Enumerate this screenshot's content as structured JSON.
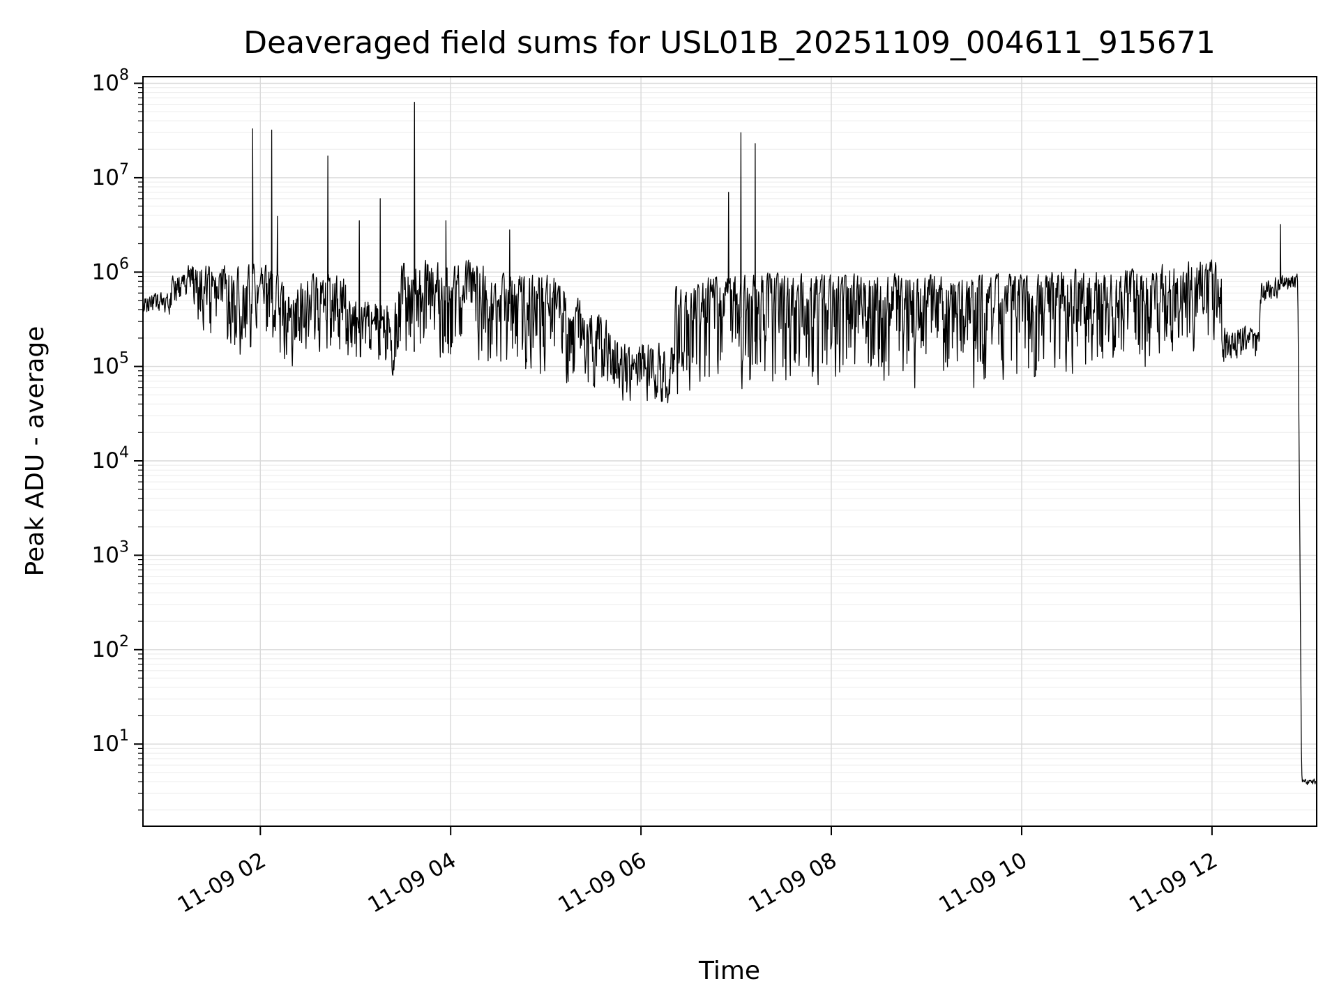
{
  "figure": {
    "background": "#ffffff"
  },
  "chart_data": {
    "type": "line",
    "title": "Deaveraged field sums for USL01B_20251109_004611_915671",
    "xlabel": "Time",
    "ylabel": "Peak ADU - average",
    "series_color": "#000000",
    "grid": {
      "major": true,
      "minor": true,
      "major_color": "#d9d9d9",
      "minor_color": "#ebebeb"
    },
    "legend": "none",
    "x_axis": {
      "unit": "hours since 2025-11-09 00:00",
      "range": [
        0.767,
        13.1
      ],
      "ticks": [
        {
          "t": 2,
          "label": "11-09 02"
        },
        {
          "t": 4,
          "label": "11-09 04"
        },
        {
          "t": 6,
          "label": "11-09 06"
        },
        {
          "t": 8,
          "label": "11-09 08"
        },
        {
          "t": 10,
          "label": "11-09 10"
        },
        {
          "t": 12,
          "label": "11-09 12"
        }
      ]
    },
    "y_axis": {
      "scale": "log",
      "range_log10": [
        0.13,
        8.07
      ],
      "ticks": [
        {
          "base": "10",
          "exp": 1
        },
        {
          "base": "10",
          "exp": 2
        },
        {
          "base": "10",
          "exp": 3
        },
        {
          "base": "10",
          "exp": 4
        },
        {
          "base": "10",
          "exp": 5
        },
        {
          "base": "10",
          "exp": 6
        },
        {
          "base": "10",
          "exp": 7
        },
        {
          "base": "10",
          "exp": 8
        }
      ]
    },
    "seed": 42,
    "noise_envelope": [
      {
        "t0": 0.767,
        "t1": 1.05,
        "lo0": 5.5,
        "hi0": 5.8,
        "bias": 1.2
      },
      {
        "t0": 1.05,
        "t1": 1.3,
        "lo0": 5.55,
        "hi0": 5.95,
        "lo1": 5.8,
        "hi1": 6.15,
        "bias": 1.5
      },
      {
        "t0": 1.3,
        "t1": 1.55,
        "lo0": 5.2,
        "hi0": 6.1,
        "bias": 1.8
      },
      {
        "t0": 1.55,
        "t1": 2.15,
        "lo0": 4.95,
        "hi0": 6.1,
        "bias": 2.0
      },
      {
        "t0": 2.15,
        "t1": 2.9,
        "lo0": 4.9,
        "hi0": 6.0,
        "bias": 2.0
      },
      {
        "t0": 2.9,
        "t1": 3.45,
        "lo0": 4.85,
        "hi0": 5.75,
        "bias": 1.8
      },
      {
        "t0": 3.45,
        "t1": 4.35,
        "lo0": 4.85,
        "hi0": 6.15,
        "bias": 2.2
      },
      {
        "t0": 4.35,
        "t1": 5.2,
        "lo0": 4.75,
        "hi0": 6.0,
        "bias": 2.2
      },
      {
        "t0": 5.2,
        "t1": 5.75,
        "lo0": 4.6,
        "hi0": 5.85,
        "lo1": 4.6,
        "hi1": 5.45,
        "bias": 1.8
      },
      {
        "t0": 5.75,
        "t1": 6.35,
        "lo0": 4.55,
        "hi0": 5.3,
        "bias": 1.4
      },
      {
        "t0": 6.35,
        "t1": 6.65,
        "lo0": 4.5,
        "hi0": 5.9,
        "bias": 2.0
      },
      {
        "t0": 6.65,
        "t1": 7.5,
        "lo0": 4.45,
        "hi0": 6.0,
        "bias": 2.4
      },
      {
        "t0": 7.5,
        "t1": 10.3,
        "lo0": 4.6,
        "hi0": 6.0,
        "bias": 2.4
      },
      {
        "t0": 10.3,
        "t1": 11.45,
        "lo0": 4.8,
        "hi0": 6.05,
        "bias": 2.0
      },
      {
        "t0": 11.45,
        "t1": 12.1,
        "lo0": 5.0,
        "hi0": 6.15,
        "bias": 2.0
      },
      {
        "t0": 12.1,
        "t1": 12.5,
        "lo0": 5.0,
        "hi0": 5.45,
        "bias": 1.3
      },
      {
        "t0": 12.5,
        "t1": 12.9,
        "lo0": 5.6,
        "hi0": 5.95,
        "lo1": 5.8,
        "hi1": 6.0,
        "bias": 1.2
      },
      {
        "t0": 12.9,
        "t1": 12.94,
        "lo0": 5.8,
        "hi0": 6.0,
        "lo1": 0.56,
        "hi1": 0.64,
        "bias": 1.0
      },
      {
        "t0": 12.94,
        "t1": 13.1,
        "lo0": 0.56,
        "hi0": 0.64,
        "bias": 1.0
      }
    ],
    "spikes": [
      {
        "t": 1.92,
        "value": 33000000
      },
      {
        "t": 2.12,
        "value": 32000000
      },
      {
        "t": 2.18,
        "value": 3900000
      },
      {
        "t": 2.71,
        "value": 17000000
      },
      {
        "t": 3.04,
        "value": 3500000
      },
      {
        "t": 3.26,
        "value": 6000000
      },
      {
        "t": 3.62,
        "value": 63000000
      },
      {
        "t": 3.95,
        "value": 3500000
      },
      {
        "t": 4.62,
        "value": 2800000
      },
      {
        "t": 6.92,
        "value": 7000000
      },
      {
        "t": 7.05,
        "value": 30000000
      },
      {
        "t": 7.2,
        "value": 23000000
      },
      {
        "t": 12.72,
        "value": 3200000
      }
    ]
  }
}
